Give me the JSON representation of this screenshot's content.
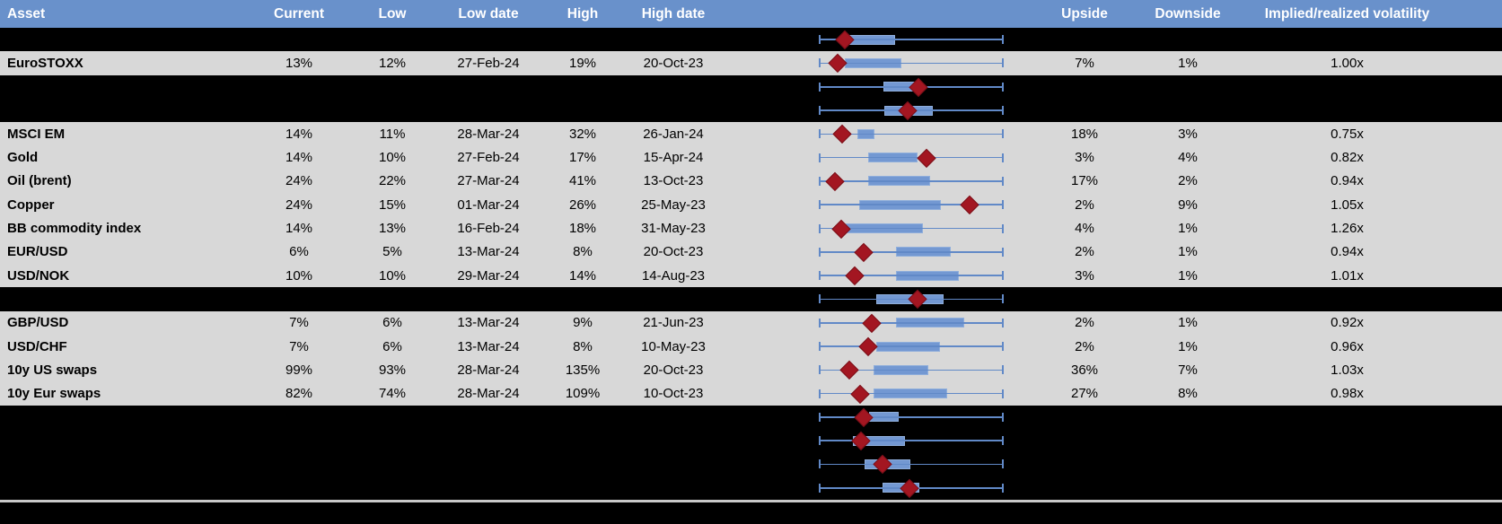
{
  "colors": {
    "header_bg": "#6991CB",
    "header_text": "#FFFFFF",
    "row_bg": "#D8D8D8",
    "hidden_row_bg": "#000000",
    "whisker_blue": "#6189C7",
    "box_fill": "#7398D2",
    "box_border": "#8FAEDB",
    "marker_red": "#A31621",
    "divider_gray": "#C9C9C9",
    "text": "#000000"
  },
  "chart_data": {
    "type": "table",
    "columns": [
      "Asset",
      "Current",
      "Low",
      "Low date",
      "High",
      "High date",
      "Upside",
      "Downside",
      "Implied/realized volatility"
    ],
    "boxplot_legend": {
      "whisker": "low-to-high range (normalized 0-1)",
      "box": "inner range band (q1-q3, normalized)",
      "diamond_marker": "current level within low-high range (normalized)"
    },
    "rows": [
      {
        "hidden": true,
        "asset": "",
        "current": "",
        "low": "",
        "low_date": "",
        "high": "",
        "high_date": "",
        "upside": "",
        "downside": "",
        "implied_realized": "",
        "box": {
          "q1": 0.162,
          "q3": 0.412,
          "marker": 0.137
        }
      },
      {
        "hidden": false,
        "asset": "EuroSTOXX",
        "current": "13%",
        "low": "12%",
        "low_date": "27-Feb-24",
        "high": "19%",
        "high_date": "20-Oct-23",
        "upside": "7%",
        "downside": "1%",
        "implied_realized": "1.00x",
        "box": {
          "q1": 0.137,
          "q3": 0.446,
          "marker": 0.097
        }
      },
      {
        "hidden": true,
        "asset": "",
        "current": "",
        "low": "",
        "low_date": "",
        "high": "",
        "high_date": "",
        "upside": "",
        "downside": "",
        "implied_realized": "",
        "box": {
          "q1": 0.348,
          "q3": 0.539,
          "marker": 0.539
        }
      },
      {
        "hidden": true,
        "asset": "",
        "current": "",
        "low": "",
        "low_date": "",
        "high": "",
        "high_date": "",
        "upside": "",
        "downside": "",
        "implied_realized": "",
        "box": {
          "q1": 0.353,
          "q3": 0.618,
          "marker": 0.48
        }
      },
      {
        "hidden": false,
        "asset": "MSCI EM",
        "current": "14%",
        "low": "11%",
        "low_date": "28-Mar-24",
        "high": "32%",
        "high_date": "26-Jan-24",
        "upside": "18%",
        "downside": "3%",
        "implied_realized": "0.75x",
        "box": {
          "q1": 0.206,
          "q3": 0.299,
          "marker": 0.123
        }
      },
      {
        "hidden": false,
        "asset": "Gold",
        "current": "14%",
        "low": "10%",
        "low_date": "27-Feb-24",
        "high": "17%",
        "high_date": "15-Apr-24",
        "upside": "3%",
        "downside": "4%",
        "implied_realized": "0.82x",
        "box": {
          "q1": 0.265,
          "q3": 0.534,
          "marker": 0.583
        }
      },
      {
        "hidden": false,
        "asset": "Oil (brent)",
        "current": "24%",
        "low": "22%",
        "low_date": "27-Mar-24",
        "high": "41%",
        "high_date": "13-Oct-23",
        "upside": "17%",
        "downside": "2%",
        "implied_realized": "0.94x",
        "box": {
          "q1": 0.265,
          "q3": 0.603,
          "marker": 0.083
        }
      },
      {
        "hidden": false,
        "asset": "Copper",
        "current": "24%",
        "low": "15%",
        "low_date": "01-Mar-24",
        "high": "26%",
        "high_date": "25-May-23",
        "upside": "2%",
        "downside": "9%",
        "implied_realized": "1.05x",
        "box": {
          "q1": 0.216,
          "q3": 0.662,
          "marker": 0.819
        }
      },
      {
        "hidden": false,
        "asset": "BB commodity index",
        "current": "14%",
        "low": "13%",
        "low_date": "16-Feb-24",
        "high": "18%",
        "high_date": "31-May-23",
        "upside": "4%",
        "downside": "1%",
        "implied_realized": "1.26x",
        "box": {
          "q1": 0.142,
          "q3": 0.564,
          "marker": 0.118
        }
      },
      {
        "hidden": false,
        "asset": "EUR/USD",
        "current": "6%",
        "low": "5%",
        "low_date": "13-Mar-24",
        "high": "8%",
        "high_date": "20-Oct-23",
        "upside": "2%",
        "downside": "1%",
        "implied_realized": "0.94x",
        "box": {
          "q1": 0.417,
          "q3": 0.716,
          "marker": 0.24
        }
      },
      {
        "hidden": false,
        "asset": "USD/NOK",
        "current": "10%",
        "low": "10%",
        "low_date": "29-Mar-24",
        "high": "14%",
        "high_date": "14-Aug-23",
        "upside": "3%",
        "downside": "1%",
        "implied_realized": "1.01x",
        "box": {
          "q1": 0.417,
          "q3": 0.76,
          "marker": 0.191
        }
      },
      {
        "hidden": true,
        "asset": "",
        "current": "",
        "low": "",
        "low_date": "",
        "high": "",
        "high_date": "",
        "upside": "",
        "downside": "",
        "implied_realized": "",
        "box": {
          "q1": 0.309,
          "q3": 0.677,
          "marker": 0.534
        }
      },
      {
        "hidden": false,
        "asset": "GBP/USD",
        "current": "7%",
        "low": "6%",
        "low_date": "13-Mar-24",
        "high": "9%",
        "high_date": "21-Jun-23",
        "upside": "2%",
        "downside": "1%",
        "implied_realized": "0.92x",
        "box": {
          "q1": 0.417,
          "q3": 0.789,
          "marker": 0.284
        }
      },
      {
        "hidden": false,
        "asset": "USD/CHF",
        "current": "7%",
        "low": "6%",
        "low_date": "13-Mar-24",
        "high": "8%",
        "high_date": "10-May-23",
        "upside": "2%",
        "downside": "1%",
        "implied_realized": "0.96x",
        "box": {
          "q1": 0.309,
          "q3": 0.657,
          "marker": 0.265
        }
      },
      {
        "hidden": false,
        "asset": "10y US swaps",
        "current": "99%",
        "low": "93%",
        "low_date": "28-Mar-24",
        "high": "135%",
        "high_date": "20-Oct-23",
        "upside": "36%",
        "downside": "7%",
        "implied_realized": "1.03x",
        "box": {
          "q1": 0.294,
          "q3": 0.593,
          "marker": 0.162
        }
      },
      {
        "hidden": false,
        "asset": "10y Eur swaps",
        "current": "82%",
        "low": "74%",
        "low_date": "28-Mar-24",
        "high": "109%",
        "high_date": "10-Oct-23",
        "upside": "27%",
        "downside": "8%",
        "implied_realized": "0.98x",
        "box": {
          "q1": 0.294,
          "q3": 0.696,
          "marker": 0.22
        }
      },
      {
        "hidden": true,
        "asset": "",
        "current": "",
        "low": "",
        "low_date": "",
        "high": "",
        "high_date": "",
        "upside": "",
        "downside": "",
        "implied_realized": "",
        "box": {
          "q1": 0.27,
          "q3": 0.431,
          "marker": 0.24
        }
      },
      {
        "hidden": true,
        "asset": "",
        "current": "",
        "low": "",
        "low_date": "",
        "high": "",
        "high_date": "",
        "upside": "",
        "downside": "",
        "implied_realized": "",
        "box": {
          "q1": 0.181,
          "q3": 0.466,
          "marker": 0.225
        }
      },
      {
        "hidden": true,
        "asset": "",
        "current": "",
        "low": "",
        "low_date": "",
        "high": "",
        "high_date": "",
        "upside": "",
        "downside": "",
        "implied_realized": "",
        "box": {
          "q1": 0.245,
          "q3": 0.495,
          "marker": 0.343
        }
      },
      {
        "hidden": true,
        "asset": "",
        "current": "",
        "low": "",
        "low_date": "",
        "high": "",
        "high_date": "",
        "upside": "",
        "downside": "",
        "implied_realized": "",
        "box": {
          "q1": 0.343,
          "q3": 0.544,
          "marker": 0.49
        }
      }
    ]
  }
}
